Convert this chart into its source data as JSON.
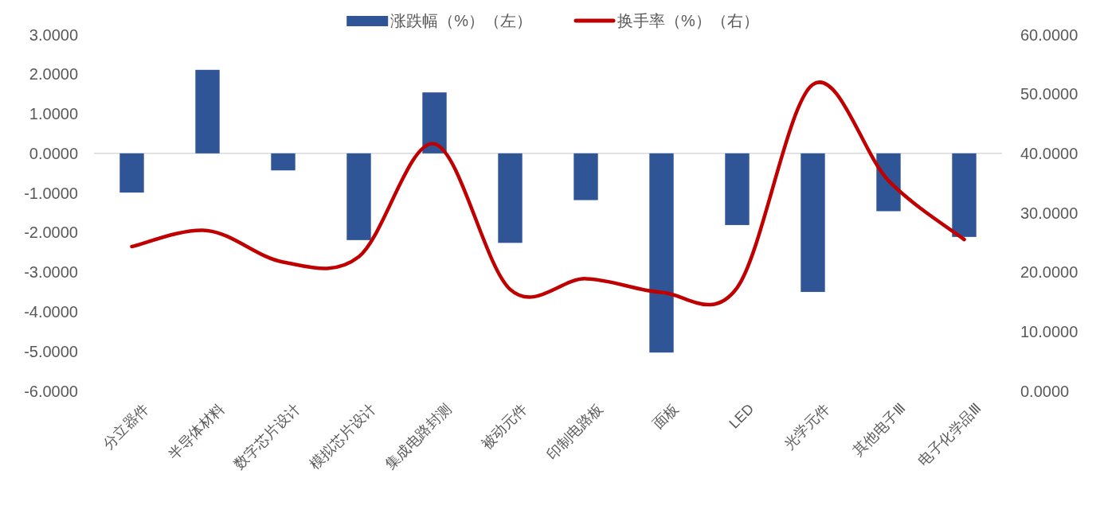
{
  "chart_data": {
    "type": "bar",
    "categories": [
      "分立器件",
      "半导体材料",
      "数字芯片设计",
      "模拟芯片设计",
      "集成电路封测",
      "被动元件",
      "印制电路板",
      "面板",
      "LED",
      "光学元件",
      "其他电子Ⅲ",
      "电子化学品Ⅲ"
    ],
    "series": [
      {
        "name": "涨跌幅（%）（左）",
        "color": "#2f5597",
        "values": [
          -0.99,
          2.11,
          -0.43,
          -2.19,
          1.54,
          -2.26,
          -1.18,
          -5.03,
          -1.81,
          -3.5,
          -1.46,
          -2.11
        ]
      },
      {
        "name": "换手率（%）（右）",
        "type": "line",
        "axis": "y2",
        "color": "#c00000",
        "values": [
          24.3,
          27.0,
          21.7,
          22.6,
          41.6,
          17.1,
          18.9,
          16.6,
          17.4,
          51.6,
          35.4,
          25.5
        ]
      }
    ],
    "ylim": [
      -6,
      3
    ],
    "yticks": [
      {
        "value": 3,
        "label": "3.0000"
      },
      {
        "value": 2,
        "label": "2.0000"
      },
      {
        "value": 1,
        "label": "1.0000"
      },
      {
        "value": 0,
        "label": "0.0000"
      },
      {
        "value": -1,
        "label": "-1.0000"
      },
      {
        "value": -2,
        "label": "-2.0000"
      },
      {
        "value": -3,
        "label": "-3.0000"
      },
      {
        "value": -4,
        "label": "-4.0000"
      },
      {
        "value": -5,
        "label": "-5.0000"
      },
      {
        "value": -6,
        "label": "-6.0000"
      }
    ],
    "y2lim": [
      0,
      60
    ],
    "y2ticks": [
      {
        "value": 60,
        "label": "60.0000"
      },
      {
        "value": 50,
        "label": "50.0000"
      },
      {
        "value": 40,
        "label": "40.0000"
      },
      {
        "value": 30,
        "label": "30.0000"
      },
      {
        "value": 20,
        "label": "20.0000"
      },
      {
        "value": 10,
        "label": "10.0000"
      },
      {
        "value": 0,
        "label": "0.0000"
      }
    ],
    "legend": "top"
  }
}
